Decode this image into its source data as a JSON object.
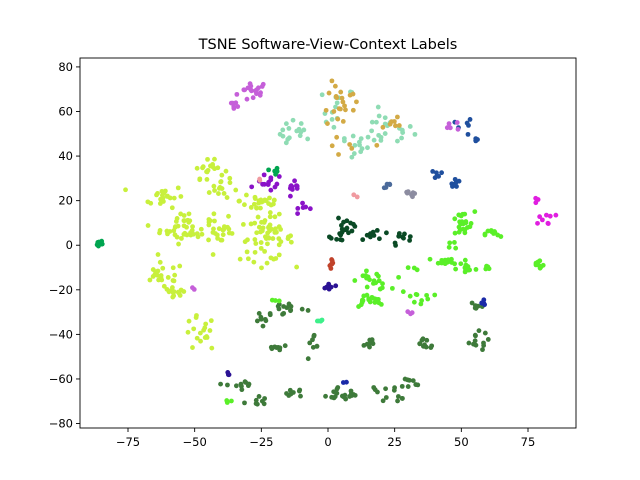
{
  "chart_data": {
    "type": "scatter",
    "title": "TSNE Software-View-Context Labels",
    "xlabel": "",
    "ylabel": "",
    "xlim": [
      -93,
      93
    ],
    "ylim": [
      -82,
      84
    ],
    "x_ticks": [
      -75,
      -50,
      -25,
      0,
      25,
      50,
      75
    ],
    "y_ticks": [
      -80,
      -60,
      -40,
      -20,
      0,
      20,
      40,
      60,
      80
    ],
    "x_tick_labels": [
      "−75",
      "−50",
      "−25",
      "0",
      "25",
      "50",
      "75"
    ],
    "y_tick_labels": [
      "−80",
      "−60",
      "−40",
      "−20",
      "0",
      "20",
      "40",
      "60",
      "80"
    ],
    "grid": false,
    "legend": "none",
    "clusters": [
      {
        "color": "#c55fd9",
        "n": 18,
        "cx": -28,
        "cy": 69,
        "sx": 3.0,
        "sy": 2.5
      },
      {
        "color": "#c55fd9",
        "n": 6,
        "cx": -35,
        "cy": 64,
        "sx": 1.0,
        "sy": 1.0
      },
      {
        "color": "#8fdcb4",
        "n": 16,
        "cx": -12,
        "cy": 50,
        "sx": 3.0,
        "sy": 3.0
      },
      {
        "color": "#8fdcb4",
        "n": 14,
        "cx": 4,
        "cy": 60,
        "sx": 3.0,
        "sy": 6.0
      },
      {
        "color": "#8fdcb4",
        "n": 12,
        "cx": 9,
        "cy": 44,
        "sx": 4.0,
        "sy": 3.0
      },
      {
        "color": "#8fdcb4",
        "n": 22,
        "cx": 22,
        "cy": 52,
        "sx": 5.0,
        "sy": 4.0
      },
      {
        "color": "#d3aa45",
        "n": 16,
        "cx": 5,
        "cy": 52,
        "sx": 3.0,
        "sy": 10.0
      },
      {
        "color": "#d3aa45",
        "n": 10,
        "cx": 5,
        "cy": 65,
        "sx": 3.0,
        "sy": 3.0
      },
      {
        "color": "#d3aa45",
        "n": 8,
        "cx": 23,
        "cy": 56,
        "sx": 3.0,
        "sy": 8.0
      },
      {
        "color": "#1f4f9e",
        "n": 6,
        "cx": 51,
        "cy": 52,
        "sx": 1.5,
        "sy": 3.0
      },
      {
        "color": "#1f4f9e",
        "n": 4,
        "cx": 55,
        "cy": 48,
        "sx": 1.0,
        "sy": 1.0
      },
      {
        "color": "#1f4f9e",
        "n": 6,
        "cx": 40,
        "cy": 32,
        "sx": 2.0,
        "sy": 1.0
      },
      {
        "color": "#1f4f9e",
        "n": 6,
        "cx": 48,
        "cy": 28,
        "sx": 1.5,
        "sy": 1.5
      },
      {
        "color": "#4b6a9a",
        "n": 5,
        "cx": 22,
        "cy": 27,
        "sx": 1.0,
        "sy": 1.0
      },
      {
        "color": "#8c8ca0",
        "n": 8,
        "cx": 32,
        "cy": 23,
        "sx": 2.5,
        "sy": 1.0
      },
      {
        "color": "#c55fd9",
        "n": 5,
        "cx": 48,
        "cy": 54,
        "sx": 1.5,
        "sy": 1.5
      },
      {
        "color": "#c8f03c",
        "n": 22,
        "cx": -62,
        "cy": 22,
        "sx": 4.0,
        "sy": 2.5
      },
      {
        "color": "#c8f03c",
        "n": 18,
        "cx": -45,
        "cy": 34,
        "sx": 3.0,
        "sy": 2.0
      },
      {
        "color": "#c8f03c",
        "n": 14,
        "cx": -40,
        "cy": 26,
        "sx": 3.0,
        "sy": 3.0
      },
      {
        "color": "#c8f03c",
        "n": 45,
        "cx": -53,
        "cy": 8,
        "sx": 5.0,
        "sy": 3.5
      },
      {
        "color": "#c8f03c",
        "n": 18,
        "cx": -40,
        "cy": 6,
        "sx": 3.0,
        "sy": 3.0
      },
      {
        "color": "#c8f03c",
        "n": 60,
        "cx": -23,
        "cy": 3,
        "sx": 5.0,
        "sy": 5.0
      },
      {
        "color": "#c8f03c",
        "n": 25,
        "cx": -25,
        "cy": 20,
        "sx": 4.0,
        "sy": 3.0
      },
      {
        "color": "#c8f03c",
        "n": 22,
        "cx": -62,
        "cy": -14,
        "sx": 4.0,
        "sy": 3.0
      },
      {
        "color": "#c8f03c",
        "n": 12,
        "cx": -58,
        "cy": -22,
        "sx": 2.5,
        "sy": 1.5
      },
      {
        "color": "#c8f03c",
        "n": 18,
        "cx": -48,
        "cy": -40,
        "sx": 3.0,
        "sy": 4.0
      },
      {
        "color": "#8a12c8",
        "n": 14,
        "cx": -22,
        "cy": 28,
        "sx": 2.5,
        "sy": 2.0
      },
      {
        "color": "#8a12c8",
        "n": 10,
        "cx": -13,
        "cy": 24,
        "sx": 1.5,
        "sy": 2.0
      },
      {
        "color": "#8a12c8",
        "n": 6,
        "cx": -8,
        "cy": 18,
        "sx": 1.5,
        "sy": 1.5
      },
      {
        "color": "#2b1294",
        "n": 8,
        "cx": 0,
        "cy": -19,
        "sx": 1.2,
        "sy": 1.2
      },
      {
        "color": "#00a550",
        "n": 10,
        "cx": -85,
        "cy": 1,
        "sx": 1.0,
        "sy": 0.8
      },
      {
        "color": "#00a550",
        "n": 5,
        "cx": -20,
        "cy": 33,
        "sx": 0.8,
        "sy": 0.8
      },
      {
        "color": "#0a4a25",
        "n": 12,
        "cx": 7,
        "cy": 10,
        "sx": 2.0,
        "sy": 2.0
      },
      {
        "color": "#0a4a25",
        "n": 10,
        "cx": 5,
        "cy": 4,
        "sx": 2.0,
        "sy": 1.2
      },
      {
        "color": "#0a4a25",
        "n": 10,
        "cx": 18,
        "cy": 5,
        "sx": 3.0,
        "sy": 1.2
      },
      {
        "color": "#0a4a25",
        "n": 10,
        "cx": 28,
        "cy": 3,
        "sx": 2.0,
        "sy": 1.5
      },
      {
        "color": "#c0422a",
        "n": 8,
        "cx": 1,
        "cy": -8,
        "sx": 1.2,
        "sy": 1.0
      },
      {
        "color": "#5aef28",
        "n": 20,
        "cx": 17,
        "cy": -16,
        "sx": 3.0,
        "sy": 2.0
      },
      {
        "color": "#5aef28",
        "n": 18,
        "cx": 15,
        "cy": -25,
        "sx": 3.0,
        "sy": 1.5
      },
      {
        "color": "#5aef28",
        "n": 10,
        "cx": 33,
        "cy": -23,
        "sx": 3.0,
        "sy": 1.5
      },
      {
        "color": "#5aef28",
        "n": 22,
        "cx": 50,
        "cy": 9,
        "sx": 2.5,
        "sy": 3.0
      },
      {
        "color": "#5aef28",
        "n": 10,
        "cx": 62,
        "cy": 5,
        "sx": 1.5,
        "sy": 1.2
      },
      {
        "color": "#5aef28",
        "n": 14,
        "cx": 45,
        "cy": -8,
        "sx": 4.0,
        "sy": 1.5
      },
      {
        "color": "#5aef28",
        "n": 10,
        "cx": 52,
        "cy": -10,
        "sx": 2.0,
        "sy": 2.0
      },
      {
        "color": "#5aef28",
        "n": 8,
        "cx": 79,
        "cy": -9,
        "sx": 1.0,
        "sy": 1.5
      },
      {
        "color": "#5aef28",
        "n": 4,
        "cx": 60,
        "cy": -10,
        "sx": 1.0,
        "sy": 0.8
      },
      {
        "color": "#5aef28",
        "n": 4,
        "cx": 48,
        "cy": 0,
        "sx": 1.5,
        "sy": 1.0
      },
      {
        "color": "#3e7a3a",
        "n": 14,
        "cx": -16,
        "cy": -28,
        "sx": 4.0,
        "sy": 2.0
      },
      {
        "color": "#3e7a3a",
        "n": 8,
        "cx": -24,
        "cy": -32,
        "sx": 2.0,
        "sy": 1.5
      },
      {
        "color": "#3e7a3a",
        "n": 8,
        "cx": -19,
        "cy": -46,
        "sx": 2.0,
        "sy": 1.2
      },
      {
        "color": "#3e7a3a",
        "n": 8,
        "cx": -5,
        "cy": -46,
        "sx": 2.0,
        "sy": 3.0
      },
      {
        "color": "#3e7a3a",
        "n": 10,
        "cx": -33,
        "cy": -63,
        "sx": 2.5,
        "sy": 3.0
      },
      {
        "color": "#3e7a3a",
        "n": 8,
        "cx": -27,
        "cy": -70,
        "sx": 2.0,
        "sy": 1.2
      },
      {
        "color": "#3e7a3a",
        "n": 8,
        "cx": -13,
        "cy": -66,
        "sx": 2.5,
        "sy": 1.2
      },
      {
        "color": "#3e7a3a",
        "n": 14,
        "cx": 9,
        "cy": -66,
        "sx": 4.0,
        "sy": 1.5
      },
      {
        "color": "#3e7a3a",
        "n": 10,
        "cx": 25,
        "cy": -66,
        "sx": 3.0,
        "sy": 2.0
      },
      {
        "color": "#3e7a3a",
        "n": 8,
        "cx": 30,
        "cy": -62,
        "sx": 2.0,
        "sy": 1.5
      },
      {
        "color": "#3e7a3a",
        "n": 8,
        "cx": 15,
        "cy": -44,
        "sx": 1.5,
        "sy": 1.5
      },
      {
        "color": "#3e7a3a",
        "n": 10,
        "cx": 36,
        "cy": -44,
        "sx": 2.5,
        "sy": 2.0
      },
      {
        "color": "#3e7a3a",
        "n": 12,
        "cx": 55,
        "cy": -43,
        "sx": 2.5,
        "sy": 2.0
      },
      {
        "color": "#3e7a3a",
        "n": 6,
        "cx": 55,
        "cy": -28,
        "sx": 1.2,
        "sy": 1.2
      },
      {
        "color": "#3e7a3a",
        "n": 6,
        "cx": 4,
        "cy": -68,
        "sx": 1.5,
        "sy": 1.5
      },
      {
        "color": "#1a2aa8",
        "n": 5,
        "cx": 58,
        "cy": -26,
        "sx": 1.0,
        "sy": 1.0
      },
      {
        "color": "#2b1294",
        "n": 3,
        "cx": -38,
        "cy": -57,
        "sx": 0.6,
        "sy": 0.6
      },
      {
        "color": "#1a2aa8",
        "n": 2,
        "cx": 6,
        "cy": -62,
        "sx": 0.5,
        "sy": 0.5
      },
      {
        "color": "#c55fd9",
        "n": 3,
        "cx": 31,
        "cy": -30,
        "sx": 0.6,
        "sy": 0.6
      },
      {
        "color": "#c55fd9",
        "n": 2,
        "cx": -50,
        "cy": -20,
        "sx": 0.5,
        "sy": 0.5
      },
      {
        "color": "#e01ee0",
        "n": 8,
        "cx": 81,
        "cy": 12,
        "sx": 2.0,
        "sy": 1.5
      },
      {
        "color": "#e01ee0",
        "n": 3,
        "cx": 78,
        "cy": 20,
        "sx": 0.6,
        "sy": 0.6
      },
      {
        "color": "#3ef08a",
        "n": 4,
        "cx": -3,
        "cy": -34,
        "sx": 0.8,
        "sy": 0.8
      },
      {
        "color": "#5aef28",
        "n": 3,
        "cx": 32,
        "cy": -10,
        "sx": 1.0,
        "sy": 0.8
      },
      {
        "color": "#5aef28",
        "n": 3,
        "cx": -20,
        "cy": -25,
        "sx": 1.0,
        "sy": 0.8
      },
      {
        "color": "#5aef28",
        "n": 3,
        "cx": -37,
        "cy": -70,
        "sx": 0.6,
        "sy": 0.6
      },
      {
        "color": "#f09aa0",
        "n": 2,
        "cx": -26,
        "cy": 29,
        "sx": 0.5,
        "sy": 0.5
      },
      {
        "color": "#f09aa0",
        "n": 2,
        "cx": 10,
        "cy": 22,
        "sx": 0.5,
        "sy": 0.5
      }
    ]
  }
}
